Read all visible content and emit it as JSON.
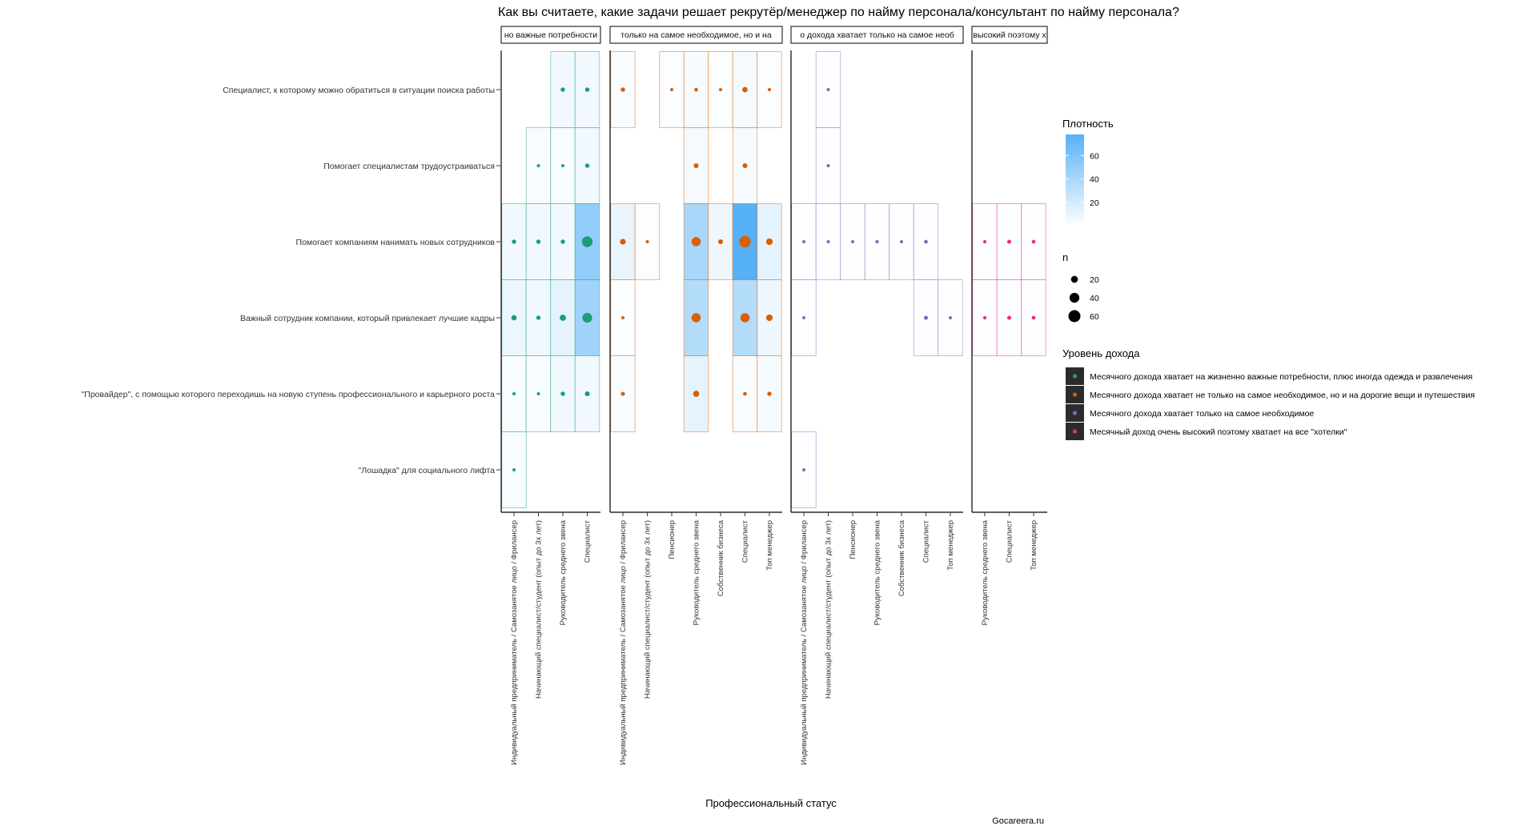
{
  "colors": {
    "density_low": "#ffffff",
    "density_high": "#56B1F7",
    "Месячного дохода хватает на жизненно важные потребности, плюс иногда одежда и развлечения": "#1B9E77",
    "Месячного дохода хватает не только на самое необходимое, но и на дорогие вещи и путешествия": "#D95F02",
    "Месячного дохода хватает только на самое необходимое": "#7570B3",
    "Месячный доход очень высокий поэтому хватает на все \"хотелки\"": "#E7298A"
  },
  "chart_data": {
    "type": "heatmap",
    "title": "Как вы считаете, какие задачи решает рекрутёр/менеджер по найму персонала/консультант по найму персонала?",
    "xlabel": "Профессиональный статус",
    "caption": "Gocareera.ru",
    "y_categories": [
      "Специалист, к которому можно обратиться в ситуации поиска работы",
      "Помогает специалистам трудоустраиваться",
      "Помогает компаниям нанимать новых сотрудников",
      "Важный сотрудник компании, который привлекает лучшие кадры",
      "\"Провайдер\", с помощью которого переходишь на новую ступень профессионального и карьерного роста",
      "\"Лошадка\" для социального лифта"
    ],
    "fill_legend": {
      "title": "Плотность",
      "breaks": [
        20,
        40,
        60
      ],
      "range": [
        0,
        78
      ]
    },
    "size_legend": {
      "title": "n",
      "breaks": [
        20,
        40,
        60
      ]
    },
    "color_legend": {
      "title": "Уровень дохода",
      "items": [
        "Месячного дохода хватает на жизненно важные потребности, плюс иногда одежда и развлечения",
        "Месячного дохода хватает не только на самое необходимое, но и на дорогие вещи и путешествия",
        "Месячного дохода хватает только на самое необходимое",
        "Месячный доход очень высокий поэтому хватает на все \"хотелки\""
      ]
    },
    "facets": [
      {
        "strip": "но важные потребности",
        "income": "Месячного дохода хватает на жизненно важные потребности, плюс иногда одежда и развлечения",
        "x_categories": [
          "Индивидуальный предприниматель / Самозанятое лицо / Фрилансер",
          "Начинающий специалист/студент (опыт до 3х лет)",
          "Руководитель среднего звена",
          "Специалист"
        ],
        "cells": [
          {
            "x": "Руководитель среднего звена",
            "y": "Специалист, к которому можно обратиться в ситуации поиска работы",
            "density": 6,
            "n": 8
          },
          {
            "x": "Специалист",
            "y": "Специалист, к которому можно обратиться в ситуации поиска работы",
            "density": 6,
            "n": 8
          },
          {
            "x": "Начинающий специалист/студент (опыт до 3х лет)",
            "y": "Помогает специалистам трудоустраиваться",
            "density": 3,
            "n": 3
          },
          {
            "x": "Руководитель среднего звена",
            "y": "Помогает специалистам трудоустраиваться",
            "density": 3,
            "n": 3
          },
          {
            "x": "Специалист",
            "y": "Помогает специалистам трудоустраиваться",
            "density": 6,
            "n": 8
          },
          {
            "x": "Индивидуальный предприниматель / Самозанятое лицо / Фрилансер",
            "y": "Помогает компаниям нанимать новых сотрудников",
            "density": 6,
            "n": 8
          },
          {
            "x": "Начинающий специалист/студент (опыт до 3х лет)",
            "y": "Помогает компаниям нанимать новых сотрудников",
            "density": 6,
            "n": 8
          },
          {
            "x": "Руководитель среднего звена",
            "y": "Помогает компаниям нанимать новых сотрудников",
            "density": 6,
            "n": 8
          },
          {
            "x": "Специалист",
            "y": "Помогает компаниям нанимать новых сотрудников",
            "density": 50,
            "n": 48
          },
          {
            "x": "Индивидуальный предприниматель / Самозанятое лицо / Фрилансер",
            "y": "Важный сотрудник компании, который привлекает лучшие кадры",
            "density": 9,
            "n": 12
          },
          {
            "x": "Начинающий специалист/студент (опыт до 3х лет)",
            "y": "Важный сотрудник компании, который привлекает лучшие кадры",
            "density": 6,
            "n": 8
          },
          {
            "x": "Руководитель среднего звена",
            "y": "Важный сотрудник компании, который привлекает лучшие кадры",
            "density": 12,
            "n": 16
          },
          {
            "x": "Специалист",
            "y": "Важный сотрудник компании, который привлекает лучшие кадры",
            "density": 44,
            "n": 40
          },
          {
            "x": "Индивидуальный предприниматель / Самозанятое лицо / Фрилансер",
            "y": "\"Провайдер\", с помощью которого переходишь на новую ступень профессионального и карьерного роста",
            "density": 3,
            "n": 3
          },
          {
            "x": "Начинающий специалист/студент (опыт до 3х лет)",
            "y": "\"Провайдер\", с помощью которого переходишь на новую ступень профессионального и карьерного роста",
            "density": 3,
            "n": 3
          },
          {
            "x": "Руководитель среднего звена",
            "y": "\"Провайдер\", с помощью которого переходишь на новую ступень профессионального и карьерного роста",
            "density": 6,
            "n": 8
          },
          {
            "x": "Специалист",
            "y": "\"Провайдер\", с помощью которого переходишь на новую ступень профессионального и карьерного роста",
            "density": 6,
            "n": 10
          },
          {
            "x": "Индивидуальный предприниматель / Самозанятое лицо / Фрилансер",
            "y": "\"Лошадка\" для социального лифта",
            "density": 3,
            "n": 3
          }
        ]
      },
      {
        "strip": "только на самое необходимое, но и на",
        "income": "Месячного дохода хватает не только на самое необходимое, но и на дорогие вещи и путешествия",
        "x_categories": [
          "Индивидуальный предприниматель / Самозанятое лицо / Фрилансер",
          "Начинающий специалист/студент (опыт до 3х лет)",
          "Пенсионер",
          "Руководитель среднего звена",
          "Собственник бизнеса",
          "Специалист",
          "Топ менеджер"
        ],
        "cells": [
          {
            "x": "Индивидуальный предприниматель / Самозанятое лицо / Фрилансер",
            "y": "Специалист, к которому можно обратиться в ситуации поиска работы",
            "density": 3,
            "n": 8
          },
          {
            "x": "Пенсионер",
            "y": "Специалист, к которому можно обратиться в ситуации поиска работы",
            "density": 2,
            "n": 3
          },
          {
            "x": "Руководитель среднего звена",
            "y": "Специалист, к которому можно обратиться в ситуации поиска работы",
            "density": 4,
            "n": 6
          },
          {
            "x": "Собственник бизнеса",
            "y": "Специалист, к которому можно обратиться в ситуации поиска работы",
            "density": 2,
            "n": 4
          },
          {
            "x": "Специалист",
            "y": "Специалист, к которому можно обратиться в ситуации поиска работы",
            "density": 5,
            "n": 12
          },
          {
            "x": "Топ менеджер",
            "y": "Специалист, к которому можно обратиться в ситуации поиска работы",
            "density": 2,
            "n": 3
          },
          {
            "x": "Руководитель среднего звена",
            "y": "Помогает специалистам трудоустраиваться",
            "density": 5,
            "n": 10
          },
          {
            "x": "Специалист",
            "y": "Помогает специалистам трудоустраиваться",
            "density": 5,
            "n": 10
          },
          {
            "x": "Индивидуальный предприниматель / Самозанятое лицо / Фрилансер",
            "y": "Помогает компаниям нанимать новых сотрудников",
            "density": 10,
            "n": 14
          },
          {
            "x": "Начинающий специалист/студент (опыт до 3х лет)",
            "y": "Помогает компаниям нанимать новых сотрудников",
            "density": 2,
            "n": 3
          },
          {
            "x": "Руководитель среднего звена",
            "y": "Помогает компаниям нанимать новых сотрудников",
            "density": 40,
            "n": 35
          },
          {
            "x": "Собственник бизнеса",
            "y": "Помогает компаниям нанимать новых сотрудников",
            "density": 8,
            "n": 10
          },
          {
            "x": "Специалист",
            "y": "Помогает компаниям нанимать новых сотрудников",
            "density": 78,
            "n": 55
          },
          {
            "x": "Топ менеджер",
            "y": "Помогает компаниям нанимать новых сотрудников",
            "density": 12,
            "n": 18
          },
          {
            "x": "Индивидуальный предприниматель / Самозанятое лицо / Фрилансер",
            "y": "Важный сотрудник компании, который привлекает лучшие кадры",
            "density": 2,
            "n": 3
          },
          {
            "x": "Руководитель среднего звена",
            "y": "Важный сотрудник компании, который привлекает лучшие кадры",
            "density": 35,
            "n": 35
          },
          {
            "x": "Специалист",
            "y": "Важный сотрудник компании, который привлекает лучшие кадры",
            "density": 35,
            "n": 35
          },
          {
            "x": "Топ менеджер",
            "y": "Важный сотрудник компании, который привлекает лучшие кадры",
            "density": 8,
            "n": 18
          },
          {
            "x": "Индивидуальный предприниматель / Самозанятое лицо / Фрилансер",
            "y": "\"Провайдер\", с помощью которого переходишь на новую ступень профессионального и карьерного роста",
            "density": 3,
            "n": 7
          },
          {
            "x": "Руководитель среднего звена",
            "y": "\"Провайдер\", с помощью которого переходишь на новую ступень профессионального и карьерного роста",
            "density": 12,
            "n": 16
          },
          {
            "x": "Специалист",
            "y": "\"Провайдер\", с помощью которого переходишь на новую ступень профессионального и карьерного роста",
            "density": 3,
            "n": 6
          },
          {
            "x": "Топ менеджер",
            "y": "\"Провайдер\", с помощью которого переходишь на новую ступень профессионального и карьерного роста",
            "density": 4,
            "n": 8
          }
        ]
      },
      {
        "strip": "о дохода хватает только на самое необ",
        "income": "Месячного дохода хватает только на самое необходимое",
        "x_categories": [
          "Индивидуальный предприниматель / Самозанятое лицо / Фрилансер",
          "Начинающий специалист/студент (опыт до 3х лет)",
          "Пенсионер",
          "Руководитель среднего звена",
          "Собственник бизнеса",
          "Специалист",
          "Топ менеджер"
        ],
        "cells": [
          {
            "x": "Начинающий специалист/студент (опыт до 3х лет)",
            "y": "Специалист, к которому можно обратиться в ситуации поиска работы",
            "density": 1,
            "n": 3
          },
          {
            "x": "Начинающий специалист/студент (опыт до 3х лет)",
            "y": "Помогает специалистам трудоустраиваться",
            "density": 1,
            "n": 3
          },
          {
            "x": "Индивидуальный предприниматель / Самозанятое лицо / Фрилансер",
            "y": "Помогает компаниям нанимать новых сотрудников",
            "density": 1,
            "n": 3
          },
          {
            "x": "Начинающий специалист/студент (опыт до 3х лет)",
            "y": "Помогает компаниям нанимать новых сотрудников",
            "density": 1,
            "n": 3
          },
          {
            "x": "Пенсионер",
            "y": "Помогает компаниям нанимать новых сотрудников",
            "density": 1,
            "n": 3
          },
          {
            "x": "Руководитель среднего звена",
            "y": "Помогает компаниям нанимать новых сотрудников",
            "density": 1,
            "n": 5
          },
          {
            "x": "Собственник бизнеса",
            "y": "Помогает компаниям нанимать новых сотрудников",
            "density": 1,
            "n": 3
          },
          {
            "x": "Специалист",
            "y": "Помогает компаниям нанимать новых сотрудников",
            "density": 1,
            "n": 6
          },
          {
            "x": "Индивидуальный предприниматель / Самозанятое лицо / Фрилансер",
            "y": "Важный сотрудник компании, который привлекает лучшие кадры",
            "density": 1,
            "n": 3
          },
          {
            "x": "Специалист",
            "y": "Важный сотрудник компании, который привлекает лучшие кадры",
            "density": 1,
            "n": 7
          },
          {
            "x": "Топ менеджер",
            "y": "Важный сотрудник компании, который привлекает лучшие кадры",
            "density": 1,
            "n": 3
          },
          {
            "x": "Индивидуальный предприниматель / Самозанятое лицо / Фрилансер",
            "y": "\"Лошадка\" для социального лифта",
            "density": 1,
            "n": 3
          }
        ]
      },
      {
        "strip": "высокий поэтому х",
        "income": "Месячный доход очень высокий поэтому хватает на все \"хотелки\"",
        "x_categories": [
          "Руководитель среднего звена",
          "Специалист",
          "Топ менеджер"
        ],
        "cells": [
          {
            "x": "Руководитель среднего звена",
            "y": "Помогает компаниям нанимать новых сотрудников",
            "density": 1,
            "n": 5
          },
          {
            "x": "Специалист",
            "y": "Помогает компаниям нанимать новых сотрудников",
            "density": 1,
            "n": 7
          },
          {
            "x": "Топ менеджер",
            "y": "Помогает компаниям нанимать новых сотрудников",
            "density": 1,
            "n": 6
          },
          {
            "x": "Руководитель среднего звена",
            "y": "Важный сотрудник компании, который привлекает лучшие кадры",
            "density": 1,
            "n": 5
          },
          {
            "x": "Специалист",
            "y": "Важный сотрудник компании, который привлекает лучшие кадры",
            "density": 1,
            "n": 7
          },
          {
            "x": "Топ менеджер",
            "y": "Важный сотрудник компании, который привлекает лучшие кадры",
            "density": 1,
            "n": 6
          }
        ]
      }
    ]
  }
}
